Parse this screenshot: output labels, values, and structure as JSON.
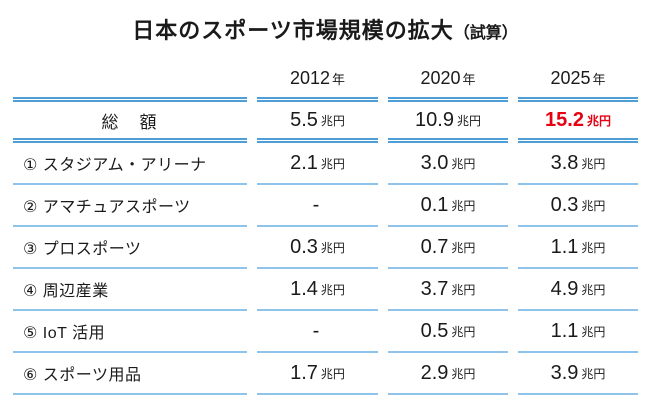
{
  "title": {
    "main": "日本のスポーツ市場規模の拡大",
    "note": "（試算）"
  },
  "colors": {
    "rule_double_blue": "#4f9fd6",
    "rule_single_blue": "#8fc3e9",
    "highlight_red": "#e60012",
    "text": "#1a1a1a"
  },
  "table": {
    "columns": [
      {
        "year": "2012",
        "suffix": "年"
      },
      {
        "year": "2020",
        "suffix": "年"
      },
      {
        "year": "2025",
        "suffix": "年"
      }
    ],
    "rows": [
      {
        "label": "総　額",
        "values": [
          {
            "num": "5.5",
            "unit": "兆円"
          },
          {
            "num": "10.9",
            "unit": "兆円"
          },
          {
            "num": "15.2",
            "unit": "兆円"
          }
        ]
      },
      {
        "label": "① スタジアム・アリーナ",
        "values": [
          {
            "num": "2.1",
            "unit": "兆円"
          },
          {
            "num": "3.0",
            "unit": "兆円"
          },
          {
            "num": "3.8",
            "unit": "兆円"
          }
        ]
      },
      {
        "label": "② アマチュアスポーツ",
        "values": [
          {
            "num": "-",
            "unit": ""
          },
          {
            "num": "0.1",
            "unit": "兆円"
          },
          {
            "num": "0.3",
            "unit": "兆円"
          }
        ]
      },
      {
        "label": "③ プロスポーツ",
        "values": [
          {
            "num": "0.3",
            "unit": "兆円"
          },
          {
            "num": "0.7",
            "unit": "兆円"
          },
          {
            "num": "1.1",
            "unit": "兆円"
          }
        ]
      },
      {
        "label": "④ 周辺産業",
        "values": [
          {
            "num": "1.4",
            "unit": "兆円"
          },
          {
            "num": "3.7",
            "unit": "兆円"
          },
          {
            "num": "4.9",
            "unit": "兆円"
          }
        ]
      },
      {
        "label": "⑤ IoT 活用",
        "values": [
          {
            "num": "-",
            "unit": ""
          },
          {
            "num": "0.5",
            "unit": "兆円"
          },
          {
            "num": "1.1",
            "unit": "兆円"
          }
        ]
      },
      {
        "label": "⑥ スポーツ用品",
        "values": [
          {
            "num": "1.7",
            "unit": "兆円"
          },
          {
            "num": "2.9",
            "unit": "兆円"
          },
          {
            "num": "3.9",
            "unit": "兆円"
          }
        ]
      }
    ]
  },
  "chart_data": {
    "type": "table",
    "title": "日本のスポーツ市場規模の拡大（試算）",
    "columns": [
      "2012年",
      "2020年",
      "2025年"
    ],
    "unit": "兆円",
    "rows": [
      {
        "label": "総額",
        "values": [
          "5.5兆円",
          "10.9兆円",
          "15.2兆円"
        ]
      },
      {
        "label": "① スタジアム・アリーナ",
        "values": [
          "2.1兆円",
          "3.0兆円",
          "3.8兆円"
        ]
      },
      {
        "label": "② アマチュアスポーツ",
        "values": [
          "-",
          "0.1兆円",
          "0.3兆円"
        ]
      },
      {
        "label": "③ プロスポーツ",
        "values": [
          "0.3兆円",
          "0.7兆円",
          "1.1兆円"
        ]
      },
      {
        "label": "④ 周辺産業",
        "values": [
          "1.4兆円",
          "3.7兆円",
          "4.9兆円"
        ]
      },
      {
        "label": "⑤ IoT活用",
        "values": [
          "-",
          "0.5兆円",
          "1.1兆円"
        ]
      },
      {
        "label": "⑥ スポーツ用品",
        "values": [
          "1.7兆円",
          "2.9兆円",
          "3.9兆円"
        ]
      }
    ],
    "numeric_series": [
      {
        "name": "総額",
        "values": [
          5.5,
          10.9,
          15.2
        ]
      },
      {
        "name": "スタジアム・アリーナ",
        "values": [
          2.1,
          3.0,
          3.8
        ]
      },
      {
        "name": "アマチュアスポーツ",
        "values": [
          null,
          0.1,
          0.3
        ]
      },
      {
        "name": "プロスポーツ",
        "values": [
          0.3,
          0.7,
          1.1
        ]
      },
      {
        "name": "周辺産業",
        "values": [
          1.4,
          3.7,
          4.9
        ]
      },
      {
        "name": "IoT活用",
        "values": [
          null,
          0.5,
          1.1
        ]
      },
      {
        "name": "スポーツ用品",
        "values": [
          1.7,
          2.9,
          3.9
        ]
      }
    ],
    "highlight": {
      "row": "総額",
      "column": "2025年",
      "value": "15.2兆円",
      "color": "#e60012"
    }
  }
}
